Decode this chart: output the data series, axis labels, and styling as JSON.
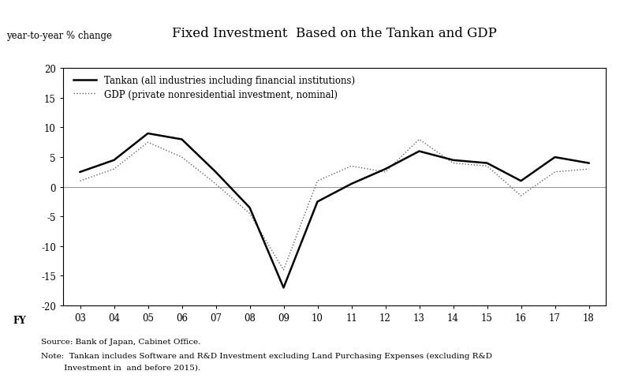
{
  "title": "Fixed Investment  Based on the Tankan and GDP",
  "ylabel": "year-to-year % change",
  "xlabel_fy": "FY",
  "x_labels": [
    "03",
    "04",
    "05",
    "06",
    "07",
    "08",
    "09",
    "10",
    "11",
    "12",
    "13",
    "14",
    "15",
    "16",
    "17",
    "18"
  ],
  "x_values": [
    3,
    4,
    5,
    6,
    7,
    8,
    9,
    10,
    11,
    12,
    13,
    14,
    15,
    16,
    17,
    18
  ],
  "tankan": [
    2.5,
    4.5,
    9.0,
    8.0,
    2.5,
    -3.5,
    -17.0,
    -2.5,
    0.5,
    3.0,
    6.0,
    4.5,
    4.0,
    1.0,
    5.0,
    4.0
  ],
  "gdp": [
    1.0,
    3.0,
    7.5,
    5.0,
    0.5,
    -4.5,
    -14.0,
    1.0,
    3.5,
    2.5,
    8.0,
    4.0,
    3.5,
    -1.5,
    2.5,
    3.0
  ],
  "tankan_color": "#000000",
  "gdp_color": "#666666",
  "ylim": [
    -20,
    20
  ],
  "yticks": [
    -20,
    -15,
    -10,
    -5,
    0,
    5,
    10,
    15,
    20
  ],
  "legend_tankan": "Tankan (all industries including financial institutions)",
  "legend_gdp": "GDP (private nonresidential investment, nominal)",
  "source_text": "Source: Bank of Japan, Cabinet Office.",
  "note_line1": "Note:  Tankan includes Software and R&D Investment excluding Land Purchasing Expenses (excluding R&D",
  "note_line2": "         Investment in  and before 2015).",
  "bg_color": "#ffffff",
  "zeroline_color": "#999999",
  "tankan_linewidth": 1.8,
  "gdp_linewidth": 1.0,
  "title_fontsize": 12,
  "axis_label_fontsize": 8.5,
  "tick_fontsize": 8.5,
  "legend_fontsize": 8.5,
  "note_fontsize": 7.5
}
